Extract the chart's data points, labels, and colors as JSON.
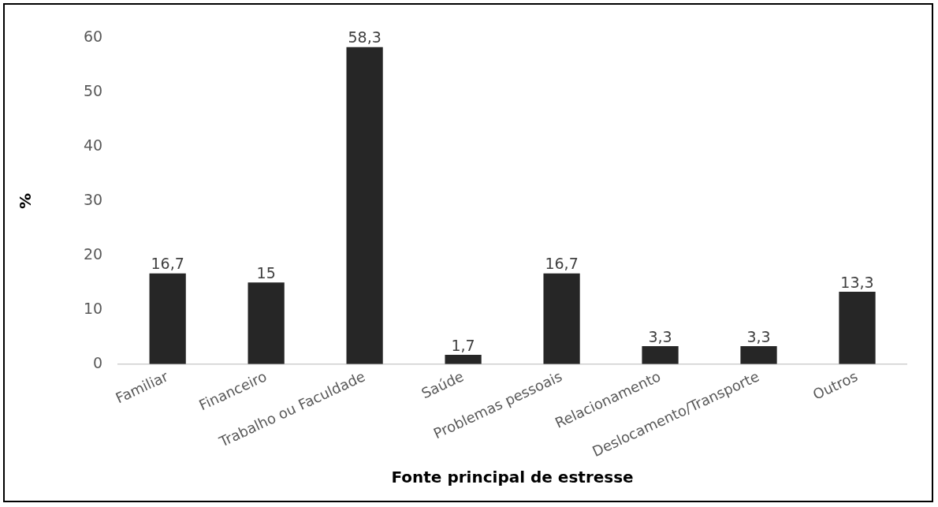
{
  "chart_data": {
    "type": "bar",
    "xlabel": "Fonte principal de estresse",
    "ylabel": "%",
    "categories": [
      "Familiar",
      "Financeiro",
      "Trabalho ou Faculdade",
      "Saúde",
      "Problemas pessoais",
      "Relacionamento",
      "Deslocamento/Transporte",
      "Outros"
    ],
    "values": [
      16.7,
      15,
      58.3,
      1.7,
      16.7,
      3.3,
      3.3,
      13.3
    ],
    "value_labels": [
      "16,7",
      "15",
      "58,3",
      "1,7",
      "16,7",
      "3,3",
      "3,3",
      "13,3"
    ],
    "color": "#262626",
    "ylim": [
      0,
      60
    ],
    "yticks": [
      0,
      10,
      20,
      30,
      40,
      50,
      60
    ],
    "grid": false,
    "legend": false
  }
}
